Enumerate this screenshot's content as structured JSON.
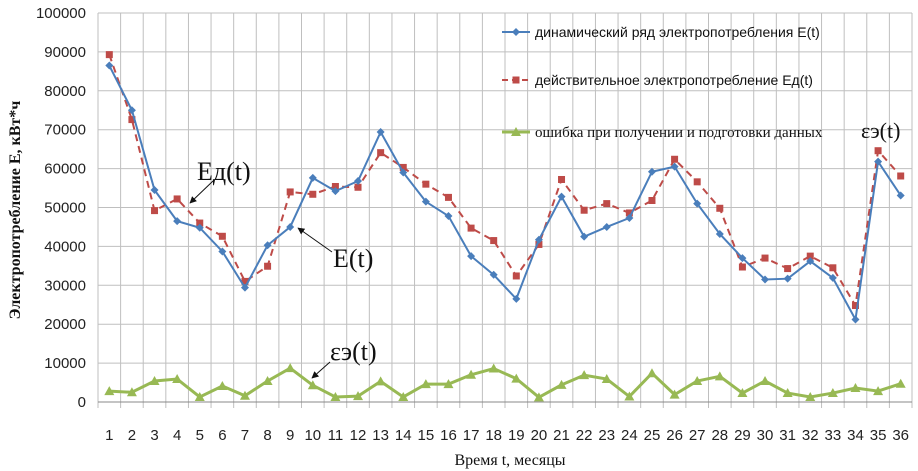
{
  "chart_data": {
    "type": "line",
    "title": "",
    "xlabel": "Время t, месяцы",
    "ylabel": "Электропотребление Е, кВт*ч",
    "ylim": [
      0,
      100000
    ],
    "yticks": [
      0,
      10000,
      20000,
      30000,
      40000,
      50000,
      60000,
      70000,
      80000,
      90000,
      100000
    ],
    "grid": true,
    "legend_placement": "top-right",
    "x": [
      1,
      2,
      3,
      4,
      5,
      6,
      7,
      8,
      9,
      10,
      11,
      12,
      13,
      14,
      15,
      16,
      17,
      18,
      19,
      20,
      21,
      22,
      23,
      24,
      25,
      26,
      27,
      28,
      29,
      30,
      31,
      32,
      33,
      34,
      35,
      36
    ],
    "series": [
      {
        "name": "динамический  ряд электропотребления  E(t)",
        "color": "#4a7ebb",
        "style": "solid",
        "marker": "diamond",
        "values": [
          86500,
          75000,
          54500,
          46500,
          44800,
          38700,
          29400,
          40300,
          45000,
          57600,
          54200,
          56800,
          69400,
          59000,
          51500,
          47800,
          37500,
          32700,
          26500,
          41700,
          52800,
          42500,
          45000,
          47300,
          59200,
          60500,
          51000,
          43200,
          37000,
          31500,
          31700,
          36200,
          31900,
          21200,
          61800,
          53100
        ]
      },
      {
        "name": "действительное  электропотребление  Ед(t)",
        "color": "#be4b48",
        "style": "dashed",
        "marker": "square",
        "values": [
          89300,
          72600,
          49200,
          52200,
          46000,
          42600,
          31000,
          34900,
          54000,
          53400,
          55400,
          55200,
          64100,
          60300,
          56000,
          52600,
          44700,
          41500,
          32400,
          40500,
          57200,
          49300,
          51000,
          48600,
          51800,
          62400,
          56600,
          49800,
          34700,
          37000,
          34300,
          37500,
          34500,
          24800,
          64600,
          58100
        ]
      },
      {
        "name": "ошибка при получении и подготовки данных",
        "name_suffix": "εэ(t)",
        "color": "#98b954",
        "style": "solid",
        "marker": "triangle",
        "values": [
          2800,
          2500,
          5400,
          5900,
          1300,
          4100,
          1600,
          5400,
          8700,
          4300,
          1300,
          1500,
          5300,
          1300,
          4600,
          4600,
          7000,
          8600,
          6000,
          1200,
          4400,
          6900,
          5900,
          1400,
          7400,
          1900,
          5400,
          6600,
          2300,
          5400,
          2300,
          1300,
          2300,
          3600,
          2800,
          4700
        ]
      }
    ],
    "annotations": [
      {
        "text": "Ед(t)",
        "target_series": 1
      },
      {
        "text": "E(t)",
        "target_series": 0
      },
      {
        "text": "εэ(t)",
        "target_series": 2
      }
    ]
  }
}
